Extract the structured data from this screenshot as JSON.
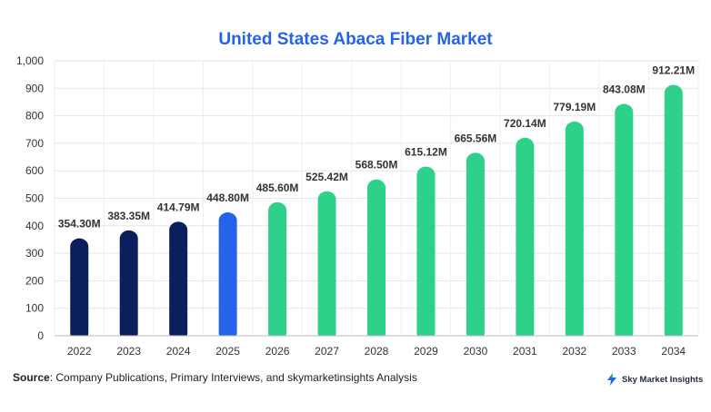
{
  "chart_data": {
    "type": "bar",
    "title": "United States Abaca Fiber Market",
    "categories": [
      "2022",
      "2023",
      "2024",
      "2025",
      "2026",
      "2027",
      "2028",
      "2029",
      "2030",
      "2031",
      "2032",
      "2033",
      "2034"
    ],
    "values": [
      354.3,
      383.35,
      414.79,
      448.8,
      485.6,
      525.42,
      568.5,
      615.12,
      665.56,
      720.14,
      779.19,
      843.08,
      912.21
    ],
    "data_labels": [
      "354.30M",
      "383.35M",
      "414.79M",
      "448.80M",
      "485.60M",
      "525.42M",
      "568.50M",
      "615.12M",
      "665.56M",
      "720.14M",
      "779.19M",
      "843.08M",
      "912.21M"
    ],
    "ylim": [
      0,
      1000
    ],
    "yticks": [
      0,
      100,
      200,
      300,
      400,
      500,
      600,
      700,
      800,
      900,
      1000
    ],
    "ytick_labels": [
      "0",
      "100",
      "200",
      "300",
      "400",
      "500",
      "600",
      "700",
      "800",
      "900",
      "1,000"
    ],
    "grid": true,
    "bar_colors": [
      "#0b1f5c",
      "#0b1f5c",
      "#0b1f5c",
      "#2563eb",
      "#2ed18a",
      "#2ed18a",
      "#2ed18a",
      "#2ed18a",
      "#2ed18a",
      "#2ed18a",
      "#2ed18a",
      "#2ed18a",
      "#2ed18a"
    ]
  },
  "footer": {
    "source_label": "Source",
    "source_text": ": Company Publications, Primary Interviews, and skymarketinsights Analysis",
    "brand": "Sky Market Insights",
    "brand_icon": "lightning-bolt-icon"
  }
}
